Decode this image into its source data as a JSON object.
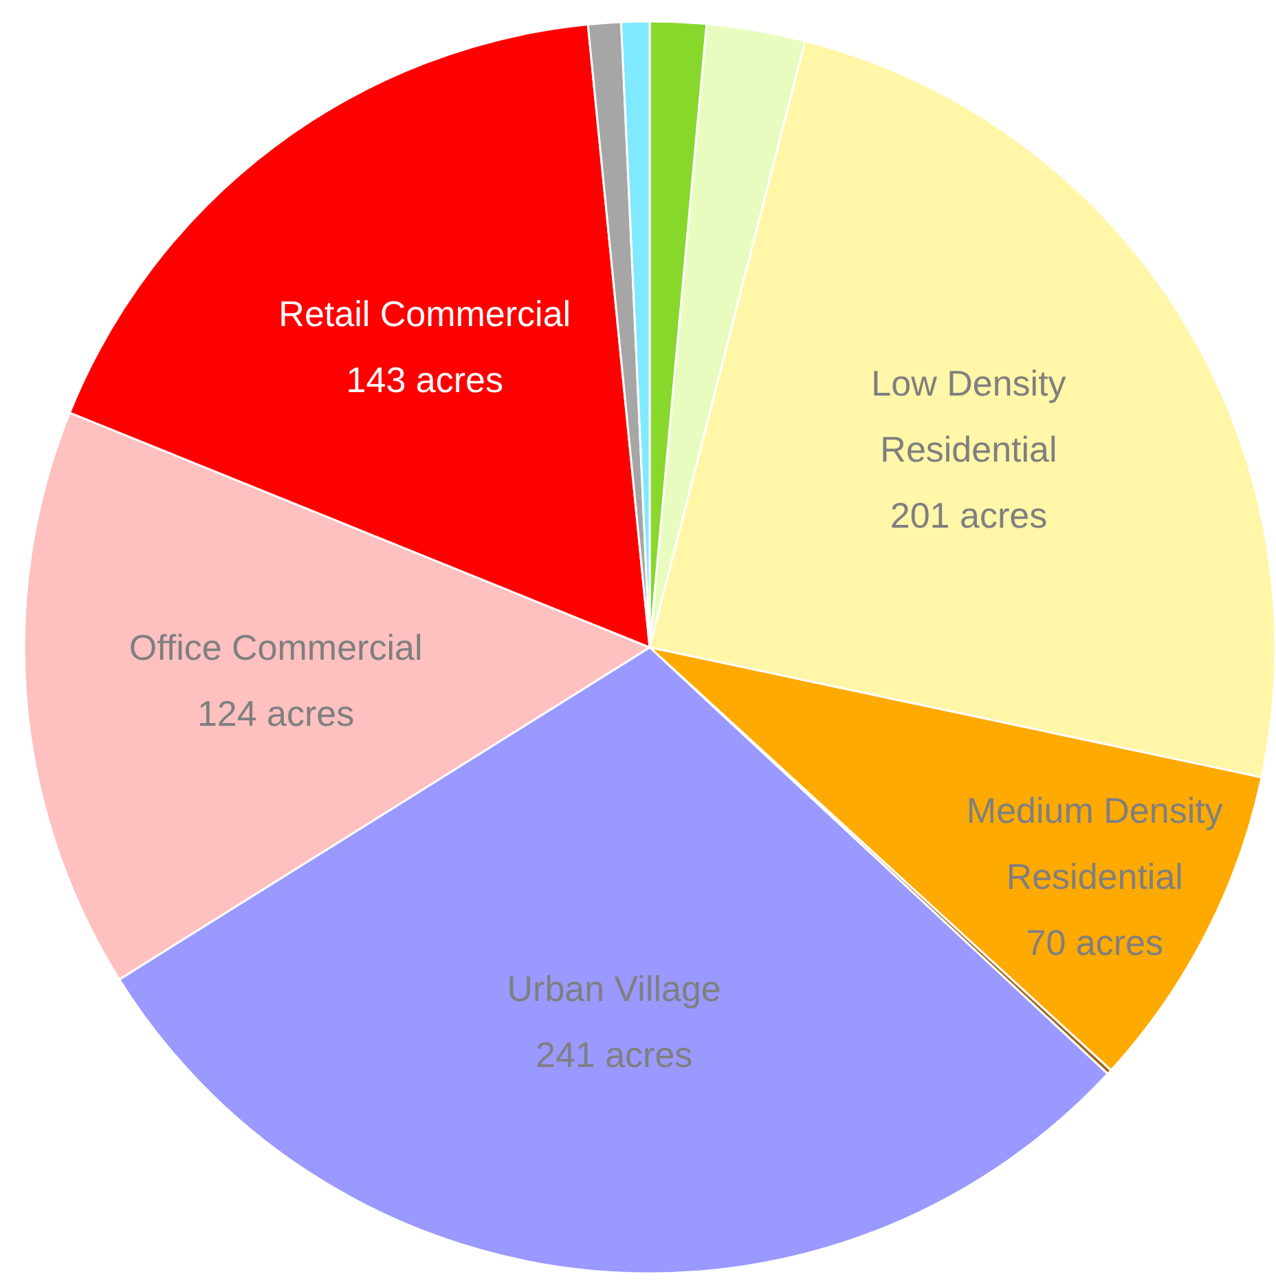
{
  "chart_data": {
    "type": "pie",
    "categories": [
      null,
      null,
      "Low Density Residential",
      "Medium Density Residential",
      null,
      "Urban Village",
      "Office Commercial",
      "Retail Commercial",
      null,
      null
    ],
    "values": [
      12,
      21,
      201,
      70,
      1,
      241,
      124,
      143,
      7,
      6
    ],
    "value_labels": [
      null,
      null,
      "201 acres",
      "70 acres",
      null,
      "241 acres",
      "124 acres",
      "143 acres",
      null,
      null
    ],
    "colors": [
      "#88d82c",
      "#e8fcc0",
      "#fff6a8",
      "#ffaa00",
      "#a0661a",
      "#9999ff",
      "#ffc0c0",
      "#ff0000",
      "#a6a6a6",
      "#7fe9ff"
    ]
  }
}
